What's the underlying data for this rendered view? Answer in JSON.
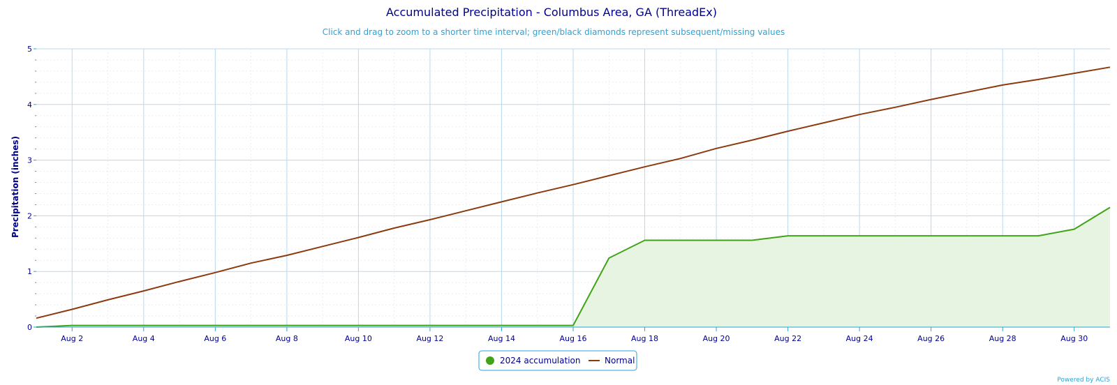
{
  "chart_data": {
    "type": "line",
    "title": "Accumulated Precipitation - Columbus Area, GA (ThreadEx)",
    "subtitle": "Click and drag to zoom to a shorter time interval; green/black diamonds represent subsequent/missing values",
    "ylabel": "Precipitation (inches)",
    "xlabel": "",
    "ylim": [
      0,
      5
    ],
    "yticks": [
      0,
      1,
      2,
      3,
      4,
      5
    ],
    "xlim": [
      1,
      31
    ],
    "xticks": [
      {
        "day": 2,
        "label": "Aug 2"
      },
      {
        "day": 4,
        "label": "Aug 4"
      },
      {
        "day": 6,
        "label": "Aug 6"
      },
      {
        "day": 8,
        "label": "Aug 8"
      },
      {
        "day": 10,
        "label": "Aug 10"
      },
      {
        "day": 12,
        "label": "Aug 12"
      },
      {
        "day": 14,
        "label": "Aug 14"
      },
      {
        "day": 16,
        "label": "Aug 16"
      },
      {
        "day": 18,
        "label": "Aug 18"
      },
      {
        "day": 20,
        "label": "Aug 20"
      },
      {
        "day": 22,
        "label": "Aug 22"
      },
      {
        "day": 24,
        "label": "Aug 24"
      },
      {
        "day": 26,
        "label": "Aug 26"
      },
      {
        "day": 28,
        "label": "Aug 28"
      },
      {
        "day": 30,
        "label": "Aug 30"
      }
    ],
    "grid": true,
    "legend_position": "bottom-center",
    "series": [
      {
        "name": "2024 accumulation",
        "type": "area",
        "color": "#41a317",
        "fill": "#e8f4e2",
        "days": [
          1,
          2,
          3,
          4,
          5,
          6,
          7,
          8,
          9,
          10,
          11,
          12,
          13,
          14,
          15,
          16,
          17,
          18,
          19,
          20,
          21,
          22,
          23,
          24,
          25,
          26,
          27,
          28,
          29,
          30,
          31
        ],
        "values": [
          0,
          0.03,
          0.03,
          0.03,
          0.03,
          0.03,
          0.03,
          0.03,
          0.03,
          0.03,
          0.03,
          0.03,
          0.03,
          0.03,
          0.03,
          0.03,
          1.24,
          1.56,
          1.56,
          1.56,
          1.56,
          1.64,
          1.64,
          1.64,
          1.64,
          1.64,
          1.64,
          1.64,
          1.64,
          1.76,
          2.15
        ]
      },
      {
        "name": "Normal",
        "type": "line",
        "color": "#8b3a0f",
        "days": [
          1,
          2,
          3,
          4,
          5,
          6,
          7,
          8,
          9,
          10,
          11,
          12,
          13,
          14,
          15,
          16,
          17,
          18,
          19,
          20,
          21,
          22,
          23,
          24,
          25,
          26,
          27,
          28,
          29,
          30,
          31
        ],
        "values": [
          0.16,
          0.32,
          0.49,
          0.65,
          0.82,
          0.98,
          1.15,
          1.29,
          1.45,
          1.61,
          1.78,
          1.93,
          2.09,
          2.25,
          2.41,
          2.56,
          2.72,
          2.88,
          3.03,
          3.21,
          3.36,
          3.52,
          3.67,
          3.82,
          3.95,
          4.09,
          4.22,
          4.35,
          4.45,
          4.56,
          4.67
        ]
      }
    ],
    "credit": "Powered by ACIS"
  }
}
